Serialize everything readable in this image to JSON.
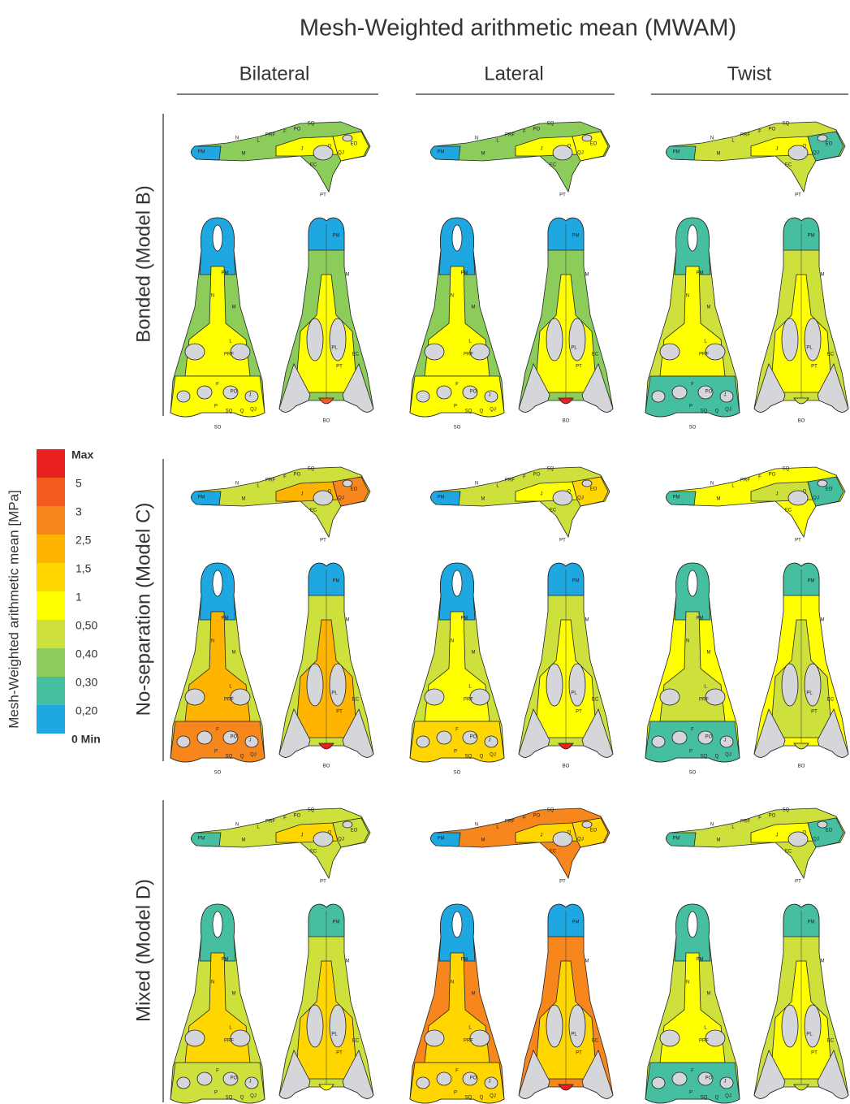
{
  "title": "Mesh-Weighted arithmetic mean (MWAM)",
  "columns": [
    "Bilateral",
    "Lateral",
    "Twist"
  ],
  "rows": [
    "Bonded (Model B)",
    "No-separation (Model C)",
    "Mixed (Model D)"
  ],
  "legend": {
    "title": "Mesh-Weighted arithmetic mean [MPa]",
    "levels": [
      {
        "label": "Max",
        "color": "#e8201f"
      },
      {
        "label": "5",
        "color": "#f25c1c"
      },
      {
        "label": "3",
        "color": "#f7861c"
      },
      {
        "label": "2,5",
        "color": "#ffb400"
      },
      {
        "label": "1,5",
        "color": "#ffd600"
      },
      {
        "label": "1",
        "color": "#ffff00"
      },
      {
        "label": "0,50",
        "color": "#cde03c"
      },
      {
        "label": "0,40",
        "color": "#8ccc5a"
      },
      {
        "label": "0,30",
        "color": "#45bfa0"
      },
      {
        "label": "0,20",
        "color": "#1ea7e1"
      },
      {
        "label": "0 Min",
        "color": null
      }
    ]
  },
  "bone_labels": {
    "lateral": [
      "PM",
      "M",
      "N",
      "L",
      "PRF",
      "F",
      "PO",
      "SQ",
      "Q",
      "QJ",
      "EO",
      "J",
      "EC",
      "PT"
    ],
    "dorsal": [
      "PM",
      "N",
      "M",
      "L",
      "PRF",
      "F",
      "PO",
      "J",
      "P",
      "SQ",
      "Q",
      "QJ",
      "SO"
    ],
    "ventral": [
      "PM",
      "M",
      "PL",
      "EC",
      "PT",
      "BO"
    ]
  },
  "panels": [
    [
      {
        "pm": "#1ea7e1",
        "m": "#8ccc5a",
        "center": "#ffff00",
        "rear": "#ffff00",
        "bo": "#f25c1c"
      },
      {
        "pm": "#1ea7e1",
        "m": "#8ccc5a",
        "center": "#ffff00",
        "rear": "#ffff00",
        "bo": "#e8201f"
      },
      {
        "pm": "#45bfa0",
        "m": "#cde03c",
        "center": "#ffff00",
        "rear": "#45bfa0",
        "bo": "#cde03c"
      }
    ],
    [
      {
        "pm": "#1ea7e1",
        "m": "#cde03c",
        "center": "#ffb400",
        "rear": "#f7861c",
        "bo": "#e8201f"
      },
      {
        "pm": "#1ea7e1",
        "m": "#cde03c",
        "center": "#ffff00",
        "rear": "#ffd600",
        "bo": "#e8201f"
      },
      {
        "pm": "#45bfa0",
        "m": "#ffff00",
        "center": "#cde03c",
        "rear": "#45bfa0",
        "bo": "#cde03c"
      }
    ],
    [
      {
        "pm": "#45bfa0",
        "m": "#cde03c",
        "center": "#ffd600",
        "rear": "#cde03c",
        "bo": "#ffff00"
      },
      {
        "pm": "#1ea7e1",
        "m": "#f7861c",
        "center": "#ffd600",
        "rear": "#ffd600",
        "bo": "#e8201f"
      },
      {
        "pm": "#45bfa0",
        "m": "#cde03c",
        "center": "#ffff00",
        "rear": "#45bfa0",
        "bo": "#cde03c"
      }
    ]
  ]
}
